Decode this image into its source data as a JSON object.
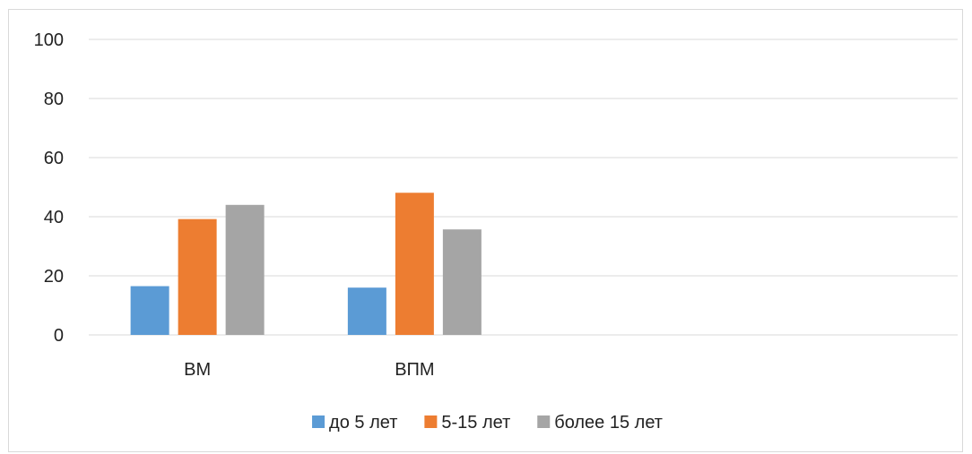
{
  "chart_data": {
    "type": "bar",
    "title": "",
    "xlabel": "",
    "ylabel": "",
    "categories": [
      "ВМ",
      "ВПМ"
    ],
    "category_slots": 4,
    "series": [
      {
        "name": "до 5 лет",
        "color": "#5b9bd5",
        "values": [
          16.5,
          16
        ]
      },
      {
        "name": "5-15 лет",
        "color": "#ed7d31",
        "values": [
          39.2,
          48.1
        ]
      },
      {
        "name": "более 15 лет",
        "color": "#a5a5a5",
        "values": [
          44,
          35.7
        ]
      }
    ],
    "ylim": [
      0,
      100
    ],
    "yticks": [
      0,
      20,
      40,
      60,
      80,
      100
    ],
    "grid": true,
    "legend_position": "bottom"
  }
}
